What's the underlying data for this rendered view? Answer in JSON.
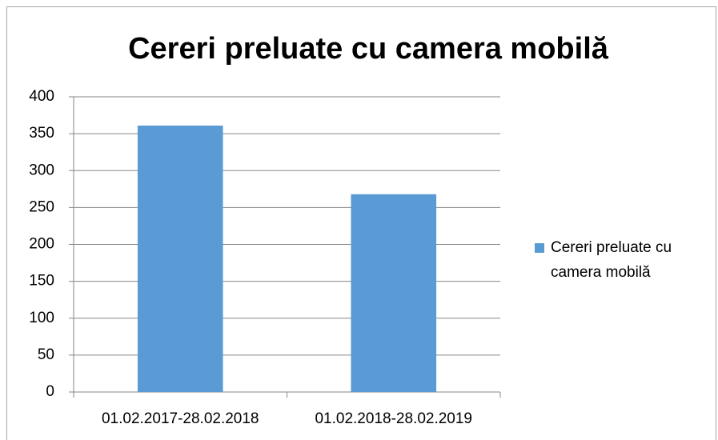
{
  "chart_data": {
    "type": "bar",
    "title": "Cereri preluate cu camera mobilă",
    "categories": [
      "01.02.2017-28.02.2018",
      "01.02.2018-28.02.2019"
    ],
    "series": [
      {
        "name": "Cereri preluate cu camera mobilă",
        "color": "#5b9bd5",
        "values": [
          361,
          268
        ]
      }
    ],
    "ylim": [
      0,
      400
    ],
    "yticks": [
      0,
      50,
      100,
      150,
      200,
      250,
      300,
      350,
      400
    ],
    "grid": true,
    "legend": "right"
  }
}
